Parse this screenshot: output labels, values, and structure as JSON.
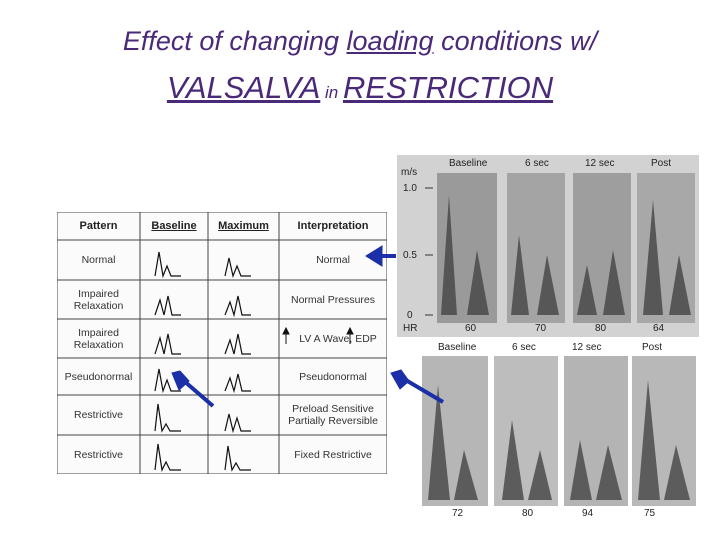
{
  "title": {
    "line1_prefix": "Effect of changing ",
    "line1_underlined": "loading",
    "line1_suffix": " conditions w/",
    "line2_a": "VALSALVA",
    "line2_in": " in ",
    "line2_b": "RESTRICTION"
  },
  "table": {
    "headers": [
      "Pattern",
      "Baseline",
      "Maximum",
      "Interpretation"
    ],
    "rows": [
      {
        "pattern": "Normal",
        "interpretation": "Normal"
      },
      {
        "pattern": "Impaired Relaxation",
        "interpretation": "Normal Pressures"
      },
      {
        "pattern": "Impaired Relaxation",
        "interpretation": "LV A Wave, EDP"
      },
      {
        "pattern": "Pseudonormal",
        "interpretation": "Pseudonormal"
      },
      {
        "pattern": "Restrictive",
        "interpretation": "Preload Sensitive Partially Reversible"
      },
      {
        "pattern": "Restrictive",
        "interpretation": "Fixed Restrictive"
      }
    ]
  },
  "echo_top": {
    "headers": [
      "Baseline",
      "6 sec",
      "12 sec",
      "Post"
    ],
    "axis_unit": "m/s",
    "axis_ticks": [
      "1.0",
      "0.5",
      "0"
    ],
    "hr_label": "HR",
    "hr_values": [
      "60",
      "70",
      "80",
      "64"
    ]
  },
  "echo_bottom": {
    "headers": [
      "Baseline",
      "6 sec",
      "12 sec",
      "Post"
    ],
    "hr_values": [
      "72",
      "80",
      "94",
      "75"
    ]
  },
  "colors": {
    "title": "#4a2a78",
    "arrow": "#1a2fa8"
  }
}
